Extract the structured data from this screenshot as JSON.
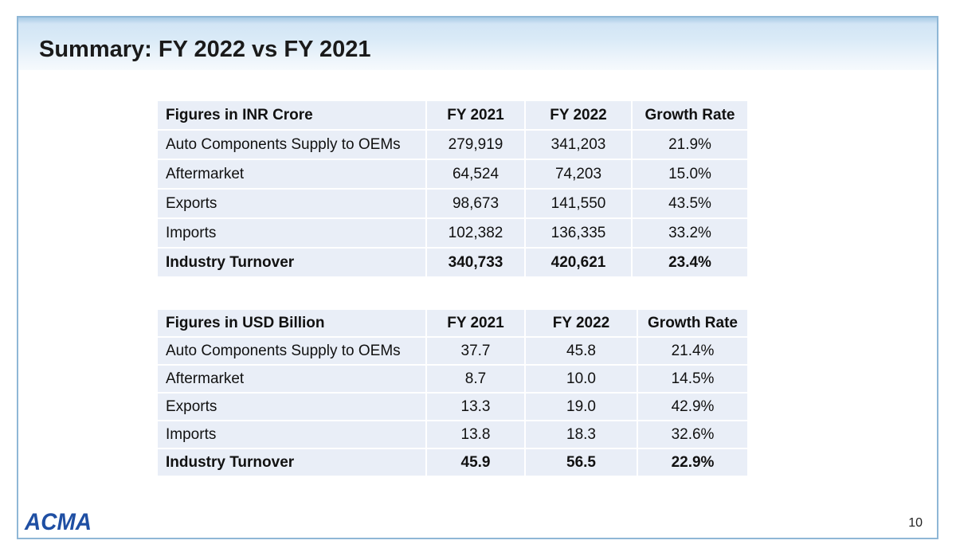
{
  "slide": {
    "title": "Summary: FY 2022 vs FY 2021",
    "page_number": "10",
    "logo_text": "ACMA"
  },
  "colors": {
    "table_cell_bg": "#e9eef7",
    "border": "#8fb7d6",
    "logo_blue": "#1f4fa3"
  },
  "inr_table": {
    "header": [
      "Figures in INR Crore",
      "FY 2021",
      "FY 2022",
      "Growth Rate"
    ],
    "rows": [
      [
        "Auto Components Supply to OEMs",
        "279,919",
        "341,203",
        "21.9%"
      ],
      [
        "Aftermarket",
        "64,524",
        "74,203",
        "15.0%"
      ],
      [
        "Exports",
        "98,673",
        "141,550",
        "43.5%"
      ],
      [
        "Imports",
        "102,382",
        "136,335",
        "33.2%"
      ],
      [
        "Industry Turnover",
        "340,733",
        "420,621",
        "23.4%"
      ]
    ]
  },
  "usd_table": {
    "header": [
      "Figures in USD Billion",
      "FY 2021",
      "FY 2022",
      "Growth Rate"
    ],
    "rows": [
      [
        "Auto Components Supply to OEMs",
        "37.7",
        "45.8",
        "21.4%"
      ],
      [
        "Aftermarket",
        "8.7",
        "10.0",
        "14.5%"
      ],
      [
        "Exports",
        "13.3",
        "19.0",
        "42.9%"
      ],
      [
        "Imports",
        "13.8",
        "18.3",
        "32.6%"
      ],
      [
        "Industry Turnover",
        "45.9",
        "56.5",
        "22.9%"
      ]
    ]
  }
}
